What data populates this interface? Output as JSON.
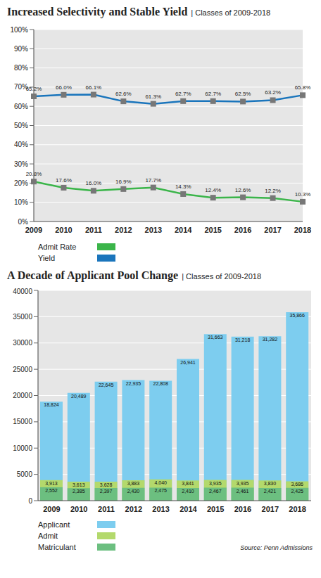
{
  "chart_data": [
    {
      "type": "line",
      "title": "Increased Selectivity and Stable Yield",
      "subtitle": "| Classes of 2009-2018",
      "categories": [
        "2009",
        "2010",
        "2011",
        "2012",
        "2013",
        "2014",
        "2015",
        "2016",
        "2017",
        "2018"
      ],
      "series": [
        {
          "name": "Admit Rate",
          "color": "#3bb54a",
          "marker": "square",
          "values": [
            20.8,
            17.6,
            16.0,
            16.9,
            17.7,
            14.3,
            12.4,
            12.6,
            12.2,
            10.3
          ],
          "value_labels": [
            "20.8%",
            "17.6%",
            "16.0%",
            "16.9%",
            "17.7%",
            "14.3%",
            "12.4%",
            "12.6%",
            "12.2%",
            "10.3%"
          ]
        },
        {
          "name": "Yield",
          "color": "#1a75bc",
          "marker": "square",
          "values": [
            65.2,
            66.0,
            66.1,
            62.6,
            61.3,
            62.7,
            62.7,
            62.5,
            63.2,
            65.8
          ],
          "value_labels": [
            "65.2%",
            "66.0%",
            "66.1%",
            "62.6%",
            "61.3%",
            "62.7%",
            "62.7%",
            "62.5%",
            "63.2%",
            "65.8%"
          ]
        }
      ],
      "ylim": [
        0,
        100
      ],
      "yticks": [
        {
          "value": 0,
          "label": "0%"
        },
        {
          "value": 10,
          "label": "10%"
        },
        {
          "value": 20,
          "label": "20%"
        },
        {
          "value": 30,
          "label": "30%"
        },
        {
          "value": 40,
          "label": "40%"
        },
        {
          "value": 50,
          "label": "50%"
        },
        {
          "value": 60,
          "label": "60%"
        },
        {
          "value": 70,
          "label": "70%"
        },
        {
          "value": 80,
          "label": "80%"
        },
        {
          "value": 90,
          "label": "90%"
        },
        {
          "value": 100,
          "label": "100%"
        }
      ],
      "grid": true,
      "data_labels": true,
      "legend": "bottom left"
    },
    {
      "type": "bar",
      "title": "A Decade of Applicant Pool Change",
      "subtitle": "| Classes of 2009-2018",
      "categories": [
        "2009",
        "2010",
        "2011",
        "2012",
        "2013",
        "2014",
        "2015",
        "2016",
        "2017",
        "2018"
      ],
      "series": [
        {
          "name": "Applicant",
          "color": "#7dcdef",
          "values": [
            18824,
            20489,
            22645,
            22935,
            22808,
            26941,
            31663,
            31218,
            31282,
            35866
          ],
          "value_labels": [
            "18,824",
            "20,489",
            "22,645",
            "22,935",
            "22,808",
            "26,941",
            "31,663",
            "31,218",
            "31,282",
            "35,866"
          ]
        },
        {
          "name": "Admit",
          "color": "#b3d96c",
          "values": [
            3913,
            3613,
            3628,
            3883,
            4040,
            3841,
            3935,
            3935,
            3830,
            3686
          ],
          "value_labels": [
            "3,913",
            "3,613",
            "3,628",
            "3,883",
            "4,040",
            "3,841",
            "3,935",
            "3,935",
            "3,830",
            "3,686"
          ]
        },
        {
          "name": "Matriculant",
          "color": "#6cbf80",
          "values": [
            2552,
            2385,
            2397,
            2430,
            2475,
            2410,
            2467,
            2461,
            2421,
            2425
          ],
          "value_labels": [
            "2,552",
            "2,385",
            "2,397",
            "2,430",
            "2,475",
            "2,410",
            "2,467",
            "2,461",
            "2,421",
            "2,425"
          ]
        }
      ],
      "ylim": [
        0,
        40000
      ],
      "yticks": [
        0,
        5000,
        10000,
        15000,
        20000,
        25000,
        30000,
        35000,
        40000
      ],
      "grid": true,
      "stacked": false,
      "data_labels": true,
      "legend": "bottom left",
      "annotations": [
        "Source: Penn Admissions"
      ]
    }
  ]
}
